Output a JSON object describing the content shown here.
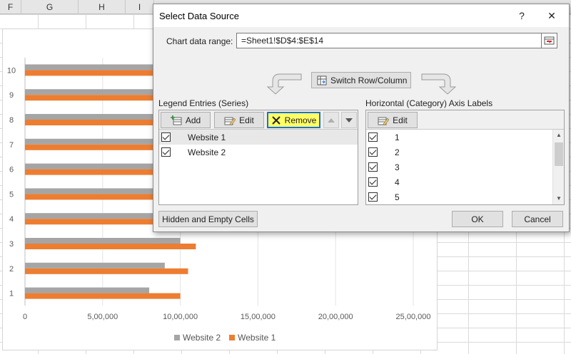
{
  "excel": {
    "column_headers": [
      "F",
      "G",
      "H",
      "I"
    ]
  },
  "chart_data": {
    "type": "bar",
    "orientation": "horizontal",
    "categories": [
      "1",
      "2",
      "3",
      "4",
      "5",
      "6",
      "7",
      "8",
      "9",
      "10"
    ],
    "series": [
      {
        "name": "Website 2",
        "color": "#a5a5a5",
        "values": [
          800000,
          900000,
          1000000,
          1650000,
          1800000,
          1900000,
          1950000,
          2000000,
          2100000,
          2200000
        ]
      },
      {
        "name": "Website 1",
        "color": "#ed7d31",
        "values": [
          1000000,
          1050000,
          1100000,
          1700000,
          1850000,
          2000000,
          2050000,
          2100000,
          2150000,
          2250000
        ]
      }
    ],
    "xlim": [
      0,
      2500000
    ],
    "xticks": [
      "0",
      "5,00,000",
      "10,00,000",
      "15,00,000",
      "20,00,000",
      "25,00,000"
    ],
    "legend": [
      "Website 2",
      "Website 1"
    ],
    "legend_position": "bottom",
    "grid": true
  },
  "dialog": {
    "title": "Select Data Source",
    "help": "?",
    "close": "✕",
    "range_label": "Chart data range:",
    "range_value": "=Sheet1!$D$4:$E$14",
    "switch_label": "Switch Row/Column",
    "legend_section": "Legend Entries (Series)",
    "axis_section": "Horizontal (Category) Axis Labels",
    "add_label": "Add",
    "edit_label": "Edit",
    "remove_label": "Remove",
    "axis_edit_label": "Edit",
    "series_entries": [
      "Website 1",
      "Website 2"
    ],
    "axis_labels": [
      "1",
      "2",
      "3",
      "4",
      "5"
    ],
    "hidden_cells_label": "Hidden and Empty Cells",
    "ok_label": "OK",
    "cancel_label": "Cancel"
  }
}
